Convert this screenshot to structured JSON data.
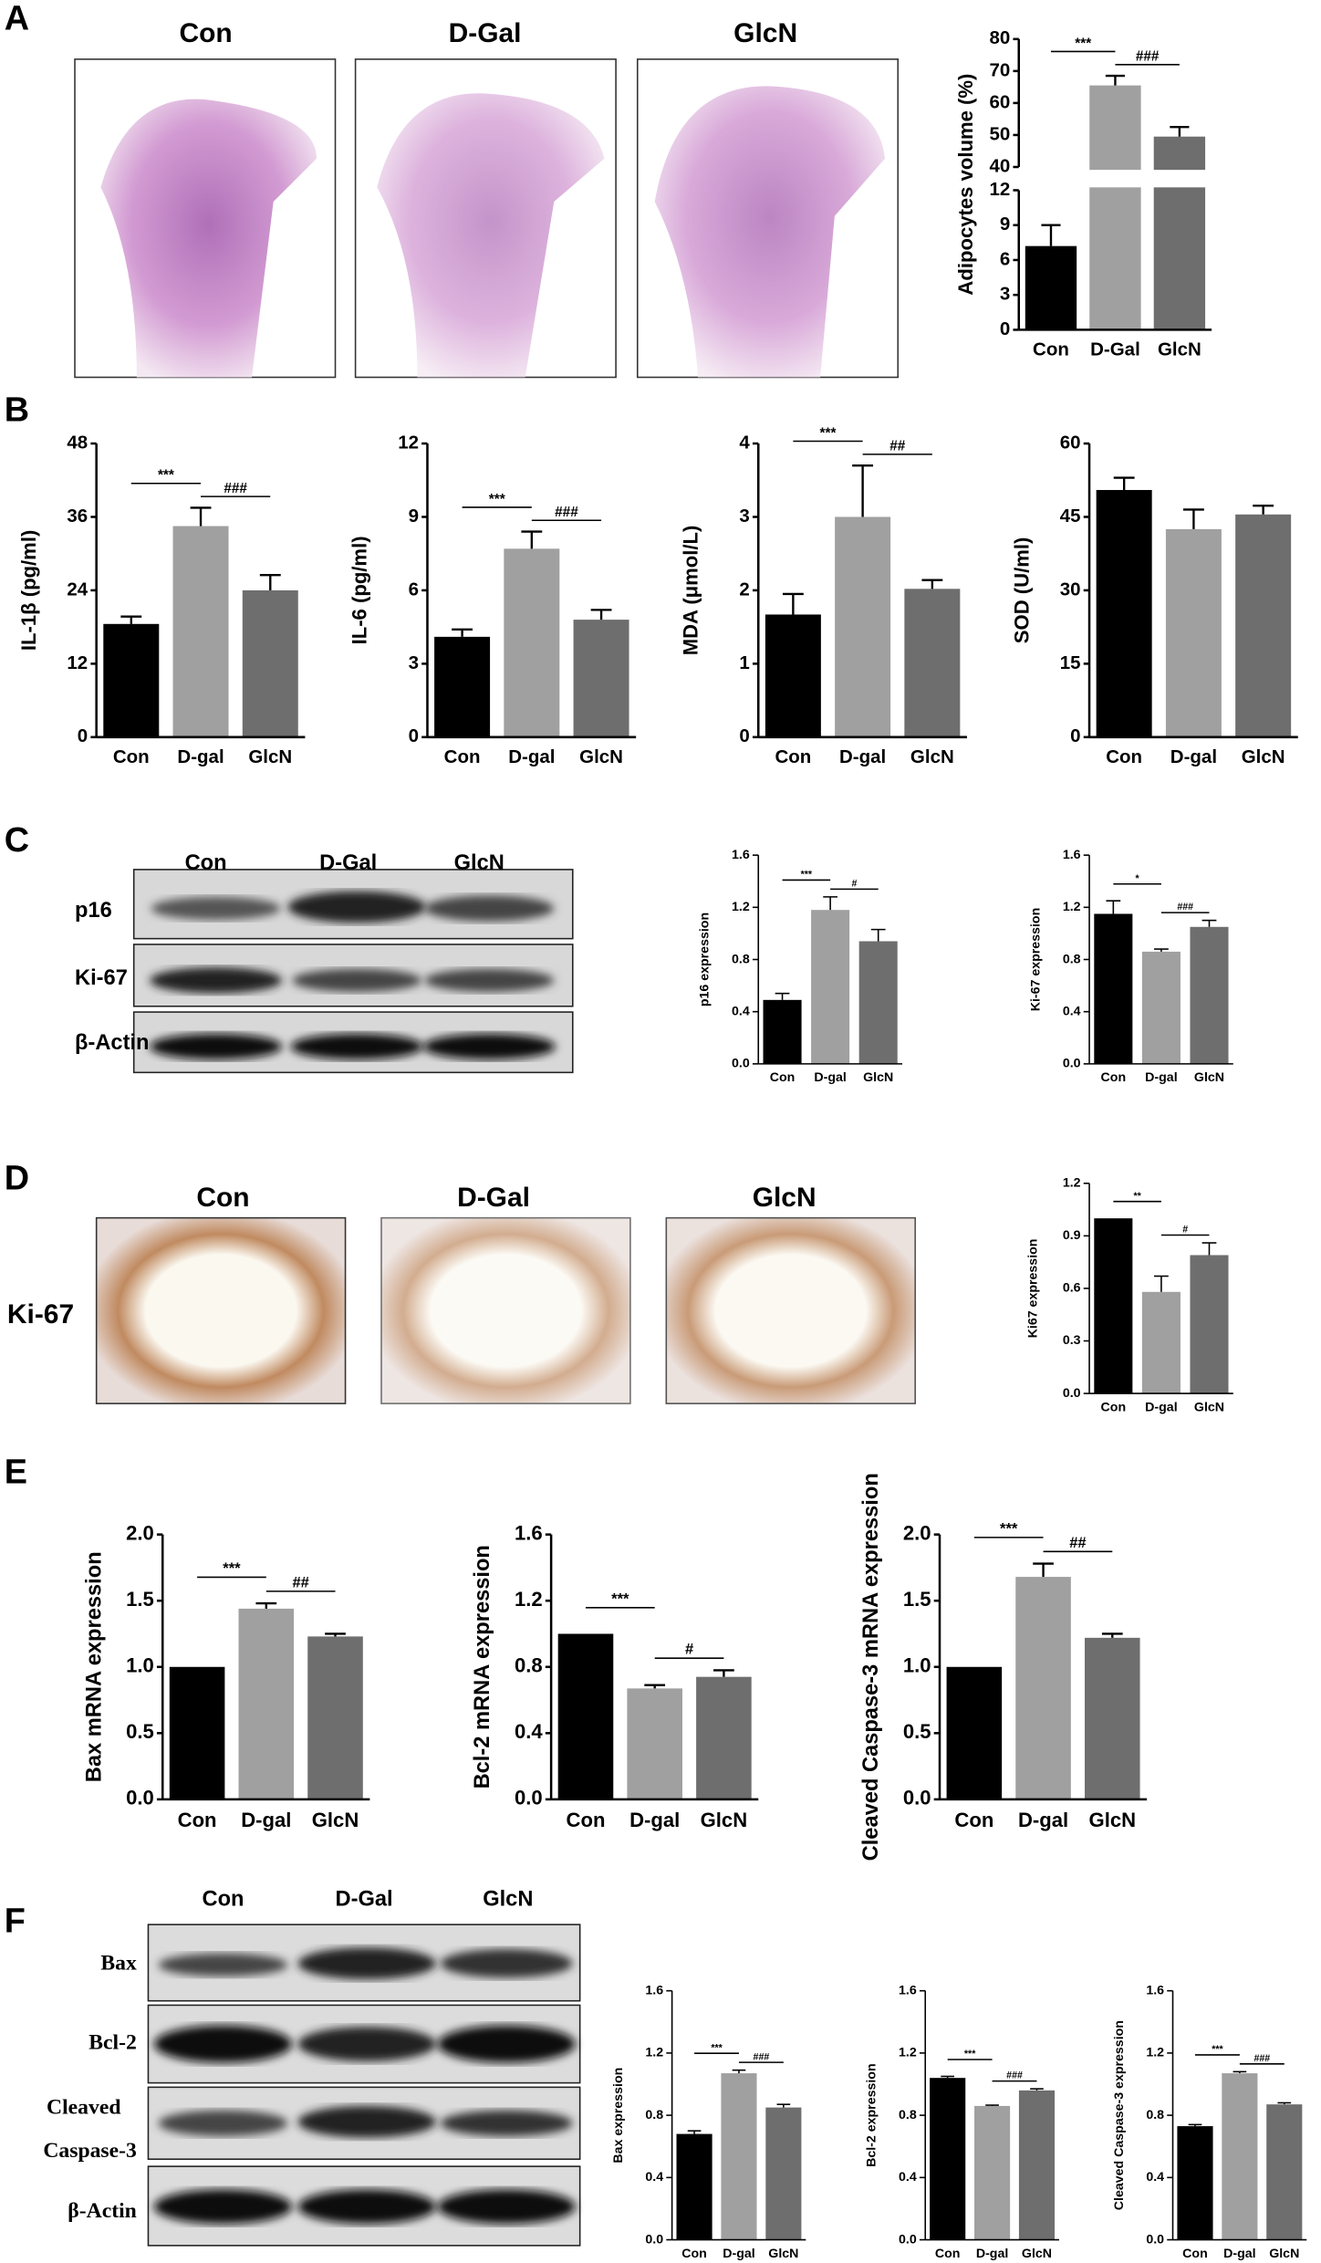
{
  "panel_letters": [
    "A",
    "B",
    "C",
    "D",
    "E",
    "F"
  ],
  "image_labels": {
    "A": [
      "Con",
      "D-Gal",
      "GlcN"
    ],
    "C": [
      "Con",
      "D-Gal",
      "GlcN"
    ],
    "D": [
      "Con",
      "D-Gal",
      "GlcN"
    ],
    "F": [
      "Con",
      "D-Gal",
      "GlcN"
    ]
  },
  "row_labels": {
    "C": [
      "p16",
      "Ki-67",
      "β-Actin"
    ],
    "D": [
      "Ki-67"
    ],
    "F": [
      "Bax",
      "Bcl-2",
      "Cleaved",
      "Caspase-3",
      "β-Actin"
    ]
  },
  "chart_data": [
    {
      "type": "bar",
      "ylabel": "Adipocytes volume (%)",
      "categories": [
        "Con",
        "D-Gal",
        "GlcN"
      ],
      "values": [
        7.2,
        65.5,
        49.5
      ],
      "errors": [
        1.8,
        3,
        3
      ],
      "colors": [
        "#000000",
        "#a0a0a0",
        "#6e6e6e"
      ],
      "ylim": [
        0,
        80
      ],
      "axis_break": [
        12,
        40
      ],
      "yticks": [
        0,
        3,
        6,
        9,
        12,
        40,
        50,
        60,
        70,
        80
      ],
      "annotations": [
        {
          "text": "***",
          "between": [
            "Con",
            "D-Gal"
          ]
        },
        {
          "text": "###",
          "between": [
            "D-Gal",
            "GlcN"
          ]
        }
      ]
    },
    {
      "type": "bar",
      "ylabel": "IL-1β (pg/ml)",
      "categories": [
        "Con",
        "D-gal",
        "GlcN"
      ],
      "values": [
        18.5,
        34.5,
        24
      ],
      "errors": [
        1.2,
        3,
        2.5
      ],
      "colors": [
        "#000000",
        "#a0a0a0",
        "#6e6e6e"
      ],
      "ylim": [
        0,
        48
      ],
      "yticks": [
        0,
        12,
        24,
        36,
        48
      ],
      "annotations": [
        {
          "text": "***",
          "between": [
            "Con",
            "D-gal"
          ]
        },
        {
          "text": "###",
          "between": [
            "D-gal",
            "GlcN"
          ]
        }
      ]
    },
    {
      "type": "bar",
      "ylabel": "IL-6 (pg/ml)",
      "categories": [
        "Con",
        "D-gal",
        "GlcN"
      ],
      "values": [
        4.1,
        7.7,
        4.8
      ],
      "errors": [
        0.3,
        0.7,
        0.4
      ],
      "colors": [
        "#000000",
        "#a0a0a0",
        "#6e6e6e"
      ],
      "ylim": [
        0,
        12
      ],
      "yticks": [
        0,
        3,
        6,
        9,
        12
      ],
      "annotations": [
        {
          "text": "***",
          "between": [
            "Con",
            "D-gal"
          ]
        },
        {
          "text": "###",
          "between": [
            "D-gal",
            "GlcN"
          ]
        }
      ]
    },
    {
      "type": "bar",
      "ylabel": "MDA (μmol/L)",
      "categories": [
        "Con",
        "D-gal",
        "GlcN"
      ],
      "values": [
        1.67,
        3.0,
        2.02
      ],
      "errors": [
        0.28,
        0.7,
        0.12
      ],
      "colors": [
        "#000000",
        "#a0a0a0",
        "#6e6e6e"
      ],
      "ylim": [
        0,
        4
      ],
      "yticks": [
        0,
        1,
        2,
        3,
        4
      ],
      "annotations": [
        {
          "text": "***",
          "between": [
            "Con",
            "D-gal"
          ]
        },
        {
          "text": "##",
          "between": [
            "D-gal",
            "GlcN"
          ]
        }
      ]
    },
    {
      "type": "bar",
      "ylabel": "SOD (U/ml)",
      "categories": [
        "Con",
        "D-gal",
        "GlcN"
      ],
      "values": [
        50.5,
        42.5,
        45.5
      ],
      "errors": [
        2.5,
        4,
        1.8
      ],
      "colors": [
        "#000000",
        "#a0a0a0",
        "#6e6e6e"
      ],
      "ylim": [
        0,
        60
      ],
      "yticks": [
        0,
        15,
        30,
        45,
        60
      ],
      "annotations": []
    },
    {
      "type": "bar",
      "ylabel": "p16 expression",
      "categories": [
        "Con",
        "D-gal",
        "GlcN"
      ],
      "values": [
        0.49,
        1.18,
        0.94
      ],
      "errors": [
        0.05,
        0.1,
        0.09
      ],
      "colors": [
        "#000000",
        "#a0a0a0",
        "#6e6e6e"
      ],
      "ylim": [
        0,
        1.6
      ],
      "yticks": [
        {
          "value": 0,
          "label": "0.0"
        },
        0.4,
        0.8,
        1.2,
        1.6
      ],
      "annotations": [
        {
          "text": "***",
          "between": [
            "Con",
            "D-gal"
          ]
        },
        {
          "text": "#",
          "between": [
            "D-gal",
            "GlcN"
          ]
        }
      ]
    },
    {
      "type": "bar",
      "ylabel": "Ki-67 expression",
      "categories": [
        "Con",
        "D-gal",
        "GlcN"
      ],
      "values": [
        1.15,
        0.86,
        1.05
      ],
      "errors": [
        0.1,
        0.02,
        0.05
      ],
      "colors": [
        "#000000",
        "#a0a0a0",
        "#6e6e6e"
      ],
      "ylim": [
        0,
        1.6
      ],
      "yticks": [
        {
          "value": 0,
          "label": "0.0"
        },
        0.4,
        0.8,
        1.2,
        1.6
      ],
      "annotations": [
        {
          "text": "*",
          "between": [
            "Con",
            "D-gal"
          ]
        },
        {
          "text": "###",
          "between": [
            "D-gal",
            "GlcN"
          ]
        }
      ]
    },
    {
      "type": "bar",
      "ylabel": "Ki67 expression",
      "categories": [
        "Con",
        "D-gal",
        "GlcN"
      ],
      "values": [
        1.0,
        0.58,
        0.79
      ],
      "errors": [
        null,
        0.09,
        0.07
      ],
      "colors": [
        "#000000",
        "#a0a0a0",
        "#6e6e6e"
      ],
      "ylim": [
        0,
        1.2
      ],
      "yticks": [
        {
          "value": 0,
          "label": "0.0"
        },
        0.3,
        0.6,
        0.9,
        1.2
      ],
      "annotations": [
        {
          "text": "**",
          "between": [
            "Con",
            "D-gal"
          ]
        },
        {
          "text": "#",
          "between": [
            "D-gal",
            "GlcN"
          ]
        }
      ]
    },
    {
      "type": "bar",
      "ylabel": "Bax mRNA expression",
      "categories": [
        "Con",
        "D-gal",
        "GlcN"
      ],
      "values": [
        1.0,
        1.44,
        1.23
      ],
      "errors": [
        null,
        0.04,
        0.02
      ],
      "colors": [
        "#000000",
        "#a0a0a0",
        "#6e6e6e"
      ],
      "ylim": [
        0,
        2
      ],
      "yticks": [
        {
          "value": 0,
          "label": "0.0"
        },
        0.5,
        {
          "value": 1,
          "label": "1.0"
        },
        1.5,
        {
          "value": 2,
          "label": "2.0"
        }
      ],
      "annotations": [
        {
          "text": "***",
          "between": [
            "Con",
            "D-gal"
          ]
        },
        {
          "text": "##",
          "between": [
            "D-gal",
            "GlcN"
          ]
        }
      ]
    },
    {
      "type": "bar",
      "ylabel": "Bcl-2  mRNA expression",
      "categories": [
        "Con",
        "D-gal",
        "GlcN"
      ],
      "values": [
        1.0,
        0.67,
        0.74
      ],
      "errors": [
        null,
        0.02,
        0.04
      ],
      "colors": [
        "#000000",
        "#a0a0a0",
        "#6e6e6e"
      ],
      "ylim": [
        0,
        1.6
      ],
      "yticks": [
        {
          "value": 0,
          "label": "0.0"
        },
        0.4,
        0.8,
        1.2,
        1.6
      ],
      "annotations": [
        {
          "text": "***",
          "between": [
            "Con",
            "D-gal"
          ]
        },
        {
          "text": "#",
          "between": [
            "D-gal",
            "GlcN"
          ]
        }
      ]
    },
    {
      "type": "bar",
      "ylabel": "Cleaved Caspase-3 mRNA expression",
      "categories": [
        "Con",
        "D-gal",
        "GlcN"
      ],
      "values": [
        1.0,
        1.68,
        1.22
      ],
      "errors": [
        null,
        0.1,
        0.03
      ],
      "colors": [
        "#000000",
        "#a0a0a0",
        "#6e6e6e"
      ],
      "ylim": [
        0,
        2
      ],
      "yticks": [
        {
          "value": 0,
          "label": "0.0"
        },
        0.5,
        {
          "value": 1,
          "label": "1.0"
        },
        1.5,
        {
          "value": 2,
          "label": "2.0"
        }
      ],
      "annotations": [
        {
          "text": "***",
          "between": [
            "Con",
            "D-gal"
          ]
        },
        {
          "text": "##",
          "between": [
            "D-gal",
            "GlcN"
          ]
        }
      ]
    },
    {
      "type": "bar",
      "ylabel": "Bax expression",
      "categories": [
        "Con",
        "D-gal",
        "GlcN"
      ],
      "values": [
        0.68,
        1.07,
        0.85
      ],
      "errors": [
        0.02,
        0.02,
        0.02
      ],
      "colors": [
        "#000000",
        "#a0a0a0",
        "#6e6e6e"
      ],
      "ylim": [
        0,
        1.6
      ],
      "yticks": [
        {
          "value": 0,
          "label": "0.0"
        },
        0.4,
        0.8,
        1.2,
        1.6
      ],
      "annotations": [
        {
          "text": "***",
          "between": [
            "Con",
            "D-gal"
          ]
        },
        {
          "text": "###",
          "between": [
            "D-gal",
            "GlcN"
          ]
        }
      ]
    },
    {
      "type": "bar",
      "ylabel": "Bcl-2  expression",
      "categories": [
        "Con",
        "D-gal",
        "GlcN"
      ],
      "values": [
        1.04,
        0.86,
        0.96
      ],
      "errors": [
        0.01,
        0.005,
        0.01
      ],
      "colors": [
        "#000000",
        "#a0a0a0",
        "#6e6e6e"
      ],
      "ylim": [
        0,
        1.6
      ],
      "yticks": [
        {
          "value": 0,
          "label": "0.0"
        },
        0.4,
        0.8,
        1.2,
        1.6
      ],
      "annotations": [
        {
          "text": "***",
          "between": [
            "Con",
            "D-gal"
          ]
        },
        {
          "text": "###",
          "between": [
            "D-gal",
            "GlcN"
          ]
        }
      ]
    },
    {
      "type": "bar",
      "ylabel": "Cleaved Caspase-3 expression",
      "categories": [
        "Con",
        "D-gal",
        "GlcN"
      ],
      "values": [
        0.73,
        1.07,
        0.87
      ],
      "errors": [
        0.01,
        0.01,
        0.01
      ],
      "colors": [
        "#000000",
        "#a0a0a0",
        "#6e6e6e"
      ],
      "ylim": [
        0,
        1.6
      ],
      "yticks": [
        {
          "value": 0,
          "label": "0.0"
        },
        0.4,
        0.8,
        1.2,
        1.6
      ],
      "annotations": [
        {
          "text": "***",
          "between": [
            "Con",
            "D-gal"
          ]
        },
        {
          "text": "###",
          "between": [
            "D-gal",
            "GlcN"
          ]
        }
      ]
    }
  ]
}
